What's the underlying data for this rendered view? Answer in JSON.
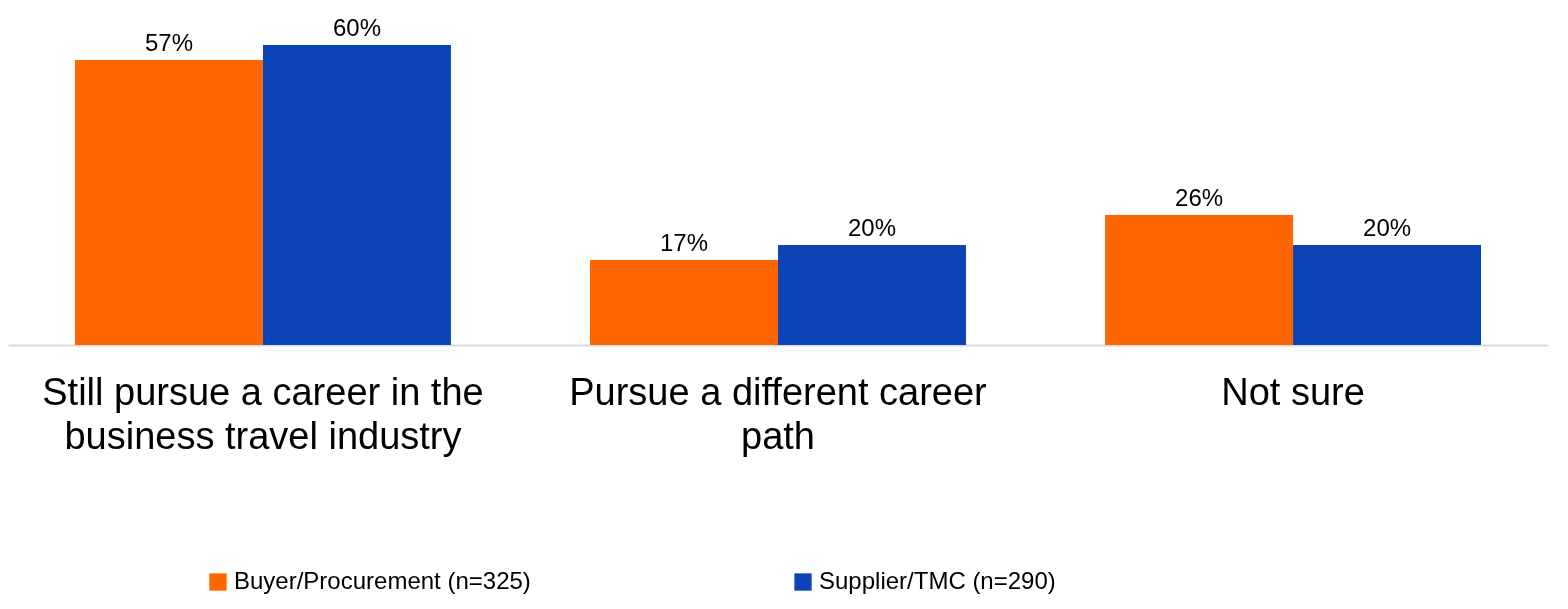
{
  "chart_data": {
    "type": "bar",
    "categories": [
      "Still pursue a career in the business travel industry",
      "Pursue a different career path",
      "Not sure"
    ],
    "series": [
      {
        "name": "Buyer/Procurement (n=325)",
        "color": "#ff6600",
        "values": [
          57,
          17,
          26
        ],
        "value_labels": [
          "57%",
          "17%",
          "26%"
        ]
      },
      {
        "name": "Supplier/TMC (n=290)",
        "color": "#0b44b6",
        "values": [
          60,
          20,
          20
        ],
        "value_labels": [
          "60%",
          "20%",
          "20%"
        ]
      }
    ],
    "legend": "bottom"
  }
}
